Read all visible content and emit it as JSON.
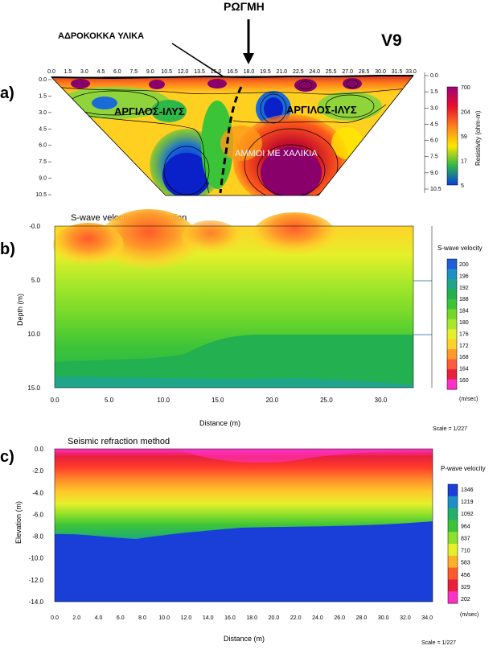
{
  "chart_data": [
    {
      "type": "heatmap",
      "panel_label": "a)",
      "site_label": "V9",
      "annotations": {
        "crack": "ΡΩΓΜΗ",
        "coarse": "ΑΔΡΟΚΟΚΚΑ ΥΛΙΚΑ",
        "clay_left": "ΑΡΓΙΛΟΣ-ΙΛΥΣ",
        "clay_right": "ΑΡΓΙΛΟΣ-ΙΛΥΣ",
        "sands": "ΑΜΜΟΙ ΜΕ ΧΑΛΙΚΙΑ"
      },
      "x_ticks": [
        "0.0",
        "1.5",
        "3.0",
        "4.5",
        "6.0",
        "7.5",
        "9.0",
        "10.5",
        "12.0",
        "13.5",
        "15.0",
        "16.5",
        "18.0",
        "19.5",
        "21.0",
        "22.5",
        "24.0",
        "25.5",
        "27.0",
        "28.5",
        "30.0",
        "31.5",
        "33.0"
      ],
      "y_ticks": [
        "0.0",
        "1.5",
        "3.0",
        "4.5",
        "6.0",
        "7.5",
        "9.0",
        "10.5"
      ],
      "y_ticks_right": [
        "0.0",
        "1.5",
        "3.0",
        "4.5",
        "6.0",
        "7.5",
        "9.0",
        "10.5"
      ],
      "colorbar_label": "Resistivity (ohm-m)",
      "colorbar_ticks": [
        "700",
        "204",
        "59",
        "17",
        "5"
      ],
      "colorbar_colors": [
        "#a0007a",
        "#e8102a",
        "#ff8a1a",
        "#ffe600",
        "#2fb84a",
        "#0a3fd8"
      ]
    },
    {
      "type": "heatmap",
      "panel_label": "b)",
      "title": "S-wave velocity cross-section",
      "xlabel": "Distance (m)",
      "ylabel": "Depth (m)",
      "x_ticks": [
        "0.0",
        "5.0",
        "10.0",
        "15.0",
        "20.0",
        "25.0",
        "30.0"
      ],
      "y_ticks": [
        "-0.0",
        "5.0",
        "10.0",
        "15.0"
      ],
      "xlim": [
        0,
        33
      ],
      "ylim": [
        0,
        15
      ],
      "legend_title": "S-wave velocity",
      "legend_values": [
        "200",
        "196",
        "192",
        "188",
        "184",
        "180",
        "176",
        "172",
        "168",
        "164",
        "160"
      ],
      "legend_colors": [
        "#1e5fd8",
        "#1f8fc8",
        "#20a58a",
        "#22b050",
        "#3cc438",
        "#74d82a",
        "#a8e82a",
        "#e4f02a",
        "#ffd22a",
        "#ff9a2a",
        "#ff5a3a",
        "#e8203c",
        "#ff30c8"
      ],
      "units": "(m/sec)",
      "scale": "Scale = 1/227"
    },
    {
      "type": "heatmap",
      "panel_label": "c)",
      "title": "Seismic refraction method",
      "xlabel": "Distance (m)",
      "ylabel": "Elevation (m)",
      "x_ticks": [
        "0.0",
        "2.0",
        "4.0",
        "6.0",
        "8.0",
        "10.0",
        "12.0",
        "14.0",
        "16.0",
        "18.0",
        "20.0",
        "22.0",
        "24.0",
        "26.0",
        "28.0",
        "30.0",
        "32.0",
        "34.0"
      ],
      "y_ticks": [
        "0.0",
        "-2.0",
        "-4.0",
        "-6.0",
        "-8.0",
        "-10.0",
        "-12.0",
        "-14.0"
      ],
      "xlim": [
        0,
        34.5
      ],
      "ylim": [
        -14,
        0
      ],
      "legend_title": "P-wave velocity",
      "legend_values": [
        "1346",
        "1219",
        "1092",
        "964",
        "837",
        "710",
        "583",
        "456",
        "329",
        "202"
      ],
      "legend_colors": [
        "#1a3fd8",
        "#1f8fc8",
        "#22b06a",
        "#3cc438",
        "#8ee02a",
        "#e4f02a",
        "#ffb02a",
        "#ff5a2a",
        "#e8203c",
        "#ff30c8"
      ],
      "units": "(m/sec)",
      "scale": "Scale = 1/227"
    }
  ]
}
